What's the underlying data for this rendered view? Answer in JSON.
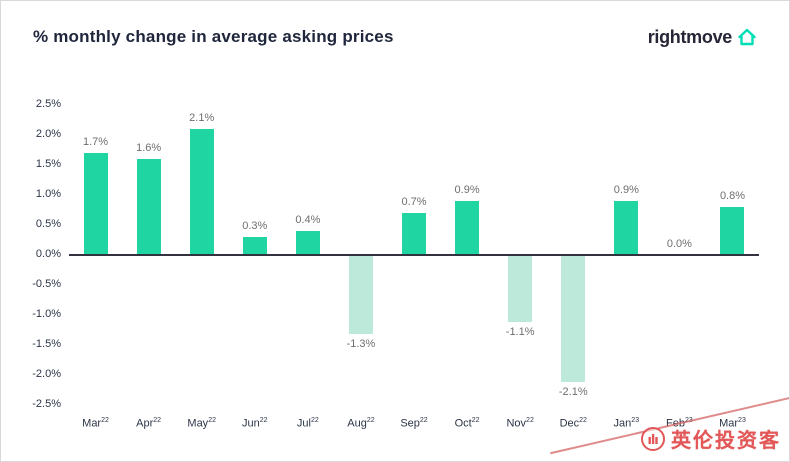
{
  "header": {
    "title": "% monthly change in average asking prices",
    "brand": {
      "name": "rightmove",
      "icon": "house-outline-icon",
      "accent_color": "#00deb6"
    }
  },
  "watermark": {
    "text": "英伦投资客",
    "color": "#e25757",
    "icon": "circle-logo-icon"
  },
  "chart_data": {
    "type": "bar",
    "title": "% monthly change in average asking prices",
    "categories": [
      {
        "month": "Mar",
        "year": "22"
      },
      {
        "month": "Apr",
        "year": "22"
      },
      {
        "month": "May",
        "year": "22"
      },
      {
        "month": "Jun",
        "year": "22"
      },
      {
        "month": "Jul",
        "year": "22"
      },
      {
        "month": "Aug",
        "year": "22"
      },
      {
        "month": "Sep",
        "year": "22"
      },
      {
        "month": "Oct",
        "year": "22"
      },
      {
        "month": "Nov",
        "year": "22"
      },
      {
        "month": "Dec",
        "year": "22"
      },
      {
        "month": "Jan",
        "year": "23"
      },
      {
        "month": "Feb",
        "year": "23"
      },
      {
        "month": "Mar",
        "year": "23"
      }
    ],
    "values": [
      1.7,
      1.6,
      2.1,
      0.3,
      0.4,
      -1.3,
      0.7,
      0.9,
      -1.1,
      -2.1,
      0.9,
      0.0,
      0.8
    ],
    "value_labels": [
      "1.7%",
      "1.6%",
      "2.1%",
      "0.3%",
      "0.4%",
      "-1.3%",
      "0.7%",
      "0.9%",
      "-1.1%",
      "-2.1%",
      "0.9%",
      "0.0%",
      "0.8%"
    ],
    "yticks": [
      "2.5%",
      "2.0%",
      "1.5%",
      "1.0%",
      "0.5%",
      "0.0%",
      "-0.5%",
      "-1.0%",
      "-1.5%",
      "-2.0%",
      "-2.5%"
    ],
    "ylim": [
      -2.5,
      2.5
    ],
    "grid": false,
    "legend": "none",
    "xlabel": "",
    "ylabel": "",
    "colors": {
      "positive": "#1fd5a1",
      "negative": "#bce9da"
    }
  }
}
